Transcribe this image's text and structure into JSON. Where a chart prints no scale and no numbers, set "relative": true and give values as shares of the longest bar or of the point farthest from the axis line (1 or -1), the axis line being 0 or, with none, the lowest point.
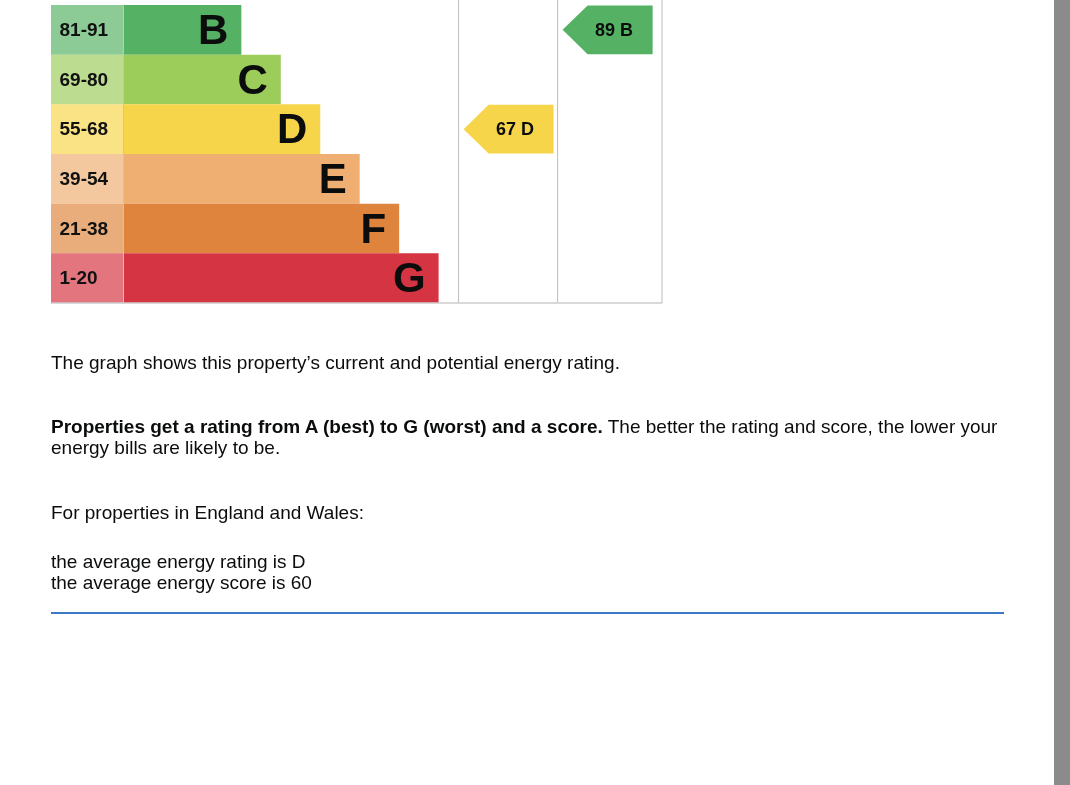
{
  "chart_data": {
    "type": "bar",
    "orientation": "horizontal",
    "relative": true,
    "categories": [
      "81-91",
      "69-80",
      "55-68",
      "39-54",
      "21-38",
      "1-20"
    ],
    "values": [
      0.375,
      0.5,
      0.625,
      0.75,
      0.875,
      1
    ],
    "colors": [
      "#55b164",
      "#9ccc5a",
      "#f7d54a",
      "#efae72",
      "#df843c",
      "#d53442"
    ],
    "annotations": [
      {
        "text": "B",
        "x": 0.375,
        "y": "81-91"
      },
      {
        "text": "C",
        "x": 0.5,
        "y": "69-80"
      },
      {
        "text": "D",
        "x": 0.625,
        "y": "55-68"
      },
      {
        "text": "E",
        "x": 0.75,
        "y": "39-54"
      },
      {
        "text": "F",
        "x": 0.875,
        "y": "21-38"
      },
      {
        "text": "G",
        "x": 1,
        "y": "1-20"
      },
      "67 D",
      "89 B",
      "The graph shows this property’s current and potential energy rating.",
      "Properties get a rating from A (best) to G (worst) and a score.",
      "The better the rating and score, the lower your energy bills are likely to be.",
      "For properties in England and Wales:",
      "the average energy rating is D",
      "the average energy score is 60"
    ]
  }
}
